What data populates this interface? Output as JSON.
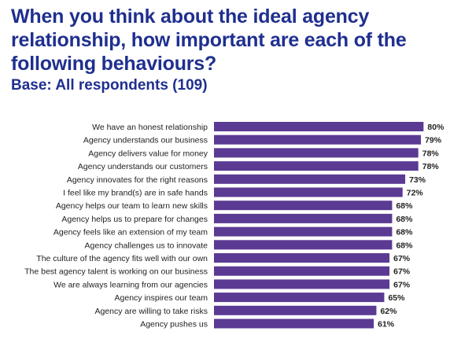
{
  "header": {
    "title": "When you think about the ideal agency relationship, how important are each of the following behaviours?",
    "subtitle": "Base: All respondents (109)"
  },
  "colors": {
    "bar": "#5b3a93",
    "title": "#1f2f8f"
  },
  "chart_data": {
    "type": "bar",
    "orientation": "horizontal",
    "title": "When you think about the ideal agency relationship, how important are each of the following behaviours?",
    "subtitle": "Base: All respondents (109)",
    "xlabel": "",
    "ylabel": "",
    "xlim": [
      0,
      100
    ],
    "grid": false,
    "legend": "none",
    "value_suffix": "%",
    "categories": [
      "We have an honest relationship",
      "Agency understands our business",
      "Agency delivers value for money",
      "Agency understands our customers",
      "Agency innovates for the right reasons",
      "I feel like my brand(s) are in safe hands",
      "Agency helps our team to learn new skills",
      "Agency helps us to prepare for changes",
      "Agency feels like an extension of my team",
      "Agency challenges us to innovate",
      "The culture of the agency fits well with our own",
      "The best agency talent is working on our business",
      "We are always learning from our agencies",
      "Agency inspires our team",
      "Agency are willing to take risks",
      "Agency pushes us"
    ],
    "values": [
      80,
      79,
      78,
      78,
      73,
      72,
      68,
      68,
      68,
      68,
      67,
      67,
      67,
      65,
      62,
      61
    ],
    "value_labels": [
      "80%",
      "79%",
      "78%",
      "78%",
      "73%",
      "72%",
      "68%",
      "68%",
      "68%",
      "68%",
      "67%",
      "67%",
      "67%",
      "65%",
      "62%",
      "61%"
    ]
  }
}
